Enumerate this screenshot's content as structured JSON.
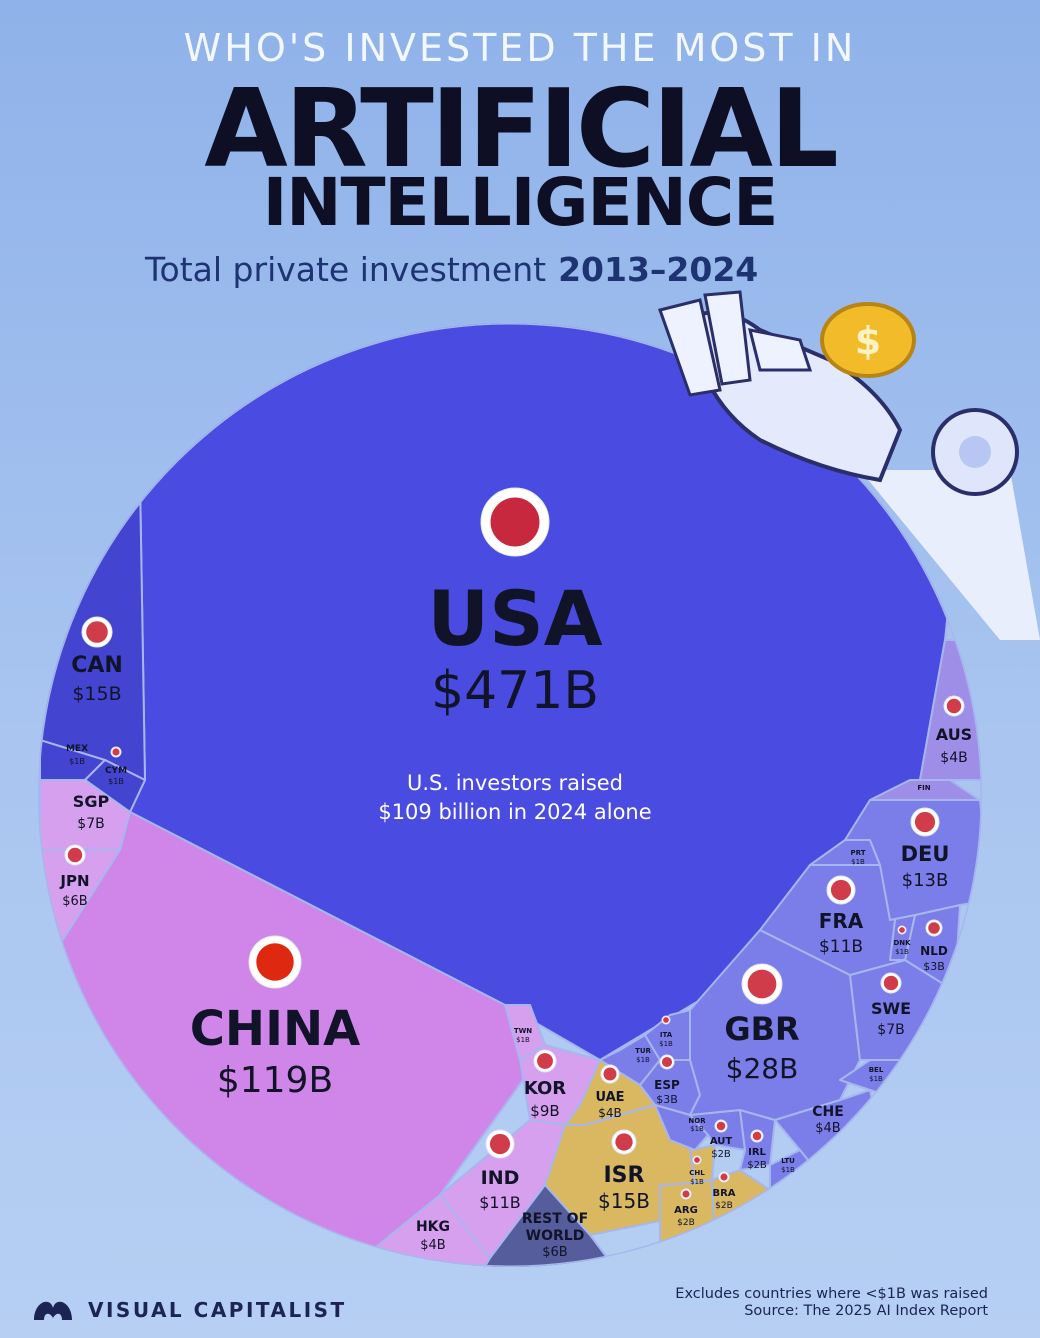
{
  "header": {
    "eyebrow": "WHO'S INVESTED THE MOST IN",
    "title_line1": "ARTIFICIAL",
    "title_line2": "INTELLIGENCE",
    "subtitle": "Total private investment",
    "subtitle_years": "2013–2024"
  },
  "chart_data": {
    "type": "voronoi-treemap",
    "title": "WHO'S INVESTED THE MOST IN ARTIFICIAL INTELLIGENCE",
    "subtitle": "Total private investment 2013–2024",
    "unit": "USD billions",
    "items": [
      {
        "code": "USA",
        "label": "$471B",
        "value": 471,
        "note": "U.S. investors raised $109 billion in 2024 alone"
      },
      {
        "code": "CHINA",
        "label": "$119B",
        "value": 119
      },
      {
        "code": "GBR",
        "label": "$28B",
        "value": 28
      },
      {
        "code": "CAN",
        "label": "$15B",
        "value": 15
      },
      {
        "code": "ISR",
        "label": "$15B",
        "value": 15
      },
      {
        "code": "DEU",
        "label": "$13B",
        "value": 13
      },
      {
        "code": "FRA",
        "label": "$11B",
        "value": 11
      },
      {
        "code": "IND",
        "label": "$11B",
        "value": 11
      },
      {
        "code": "KOR",
        "label": "$9B",
        "value": 9
      },
      {
        "code": "SGP",
        "label": "$7B",
        "value": 7
      },
      {
        "code": "SWE",
        "label": "$7B",
        "value": 7
      },
      {
        "code": "JPN",
        "label": "$6B",
        "value": 6
      },
      {
        "code": "REST OF WORLD",
        "label": "$6B",
        "value": 6
      },
      {
        "code": "AUS",
        "label": "$4B",
        "value": 4
      },
      {
        "code": "HKG",
        "label": "$4B",
        "value": 4
      },
      {
        "code": "UAE",
        "label": "$4B",
        "value": 4
      },
      {
        "code": "CHE",
        "label": "$4B",
        "value": 4
      },
      {
        "code": "NLD",
        "label": "$3B",
        "value": 3
      },
      {
        "code": "ESP",
        "label": "$3B",
        "value": 3
      },
      {
        "code": "AUT",
        "label": "$2B",
        "value": 2
      },
      {
        "code": "IRL",
        "label": "$2B",
        "value": 2
      },
      {
        "code": "ARG",
        "label": "$2B",
        "value": 2
      },
      {
        "code": "BRA",
        "label": "$2B",
        "value": 2
      },
      {
        "code": "MEX",
        "label": "$1B",
        "value": 1
      },
      {
        "code": "CYM",
        "label": "$1B",
        "value": 1
      },
      {
        "code": "TWN",
        "label": "$1B",
        "value": 1
      },
      {
        "code": "TUR",
        "label": "$1B",
        "value": 1
      },
      {
        "code": "ITA",
        "label": "$1B",
        "value": 1
      },
      {
        "code": "NOR",
        "label": "$1B",
        "value": 1
      },
      {
        "code": "CHL",
        "label": "$1B",
        "value": 1
      },
      {
        "code": "LTU",
        "label": "$1B",
        "value": 1
      },
      {
        "code": "BEL",
        "label": "$1B",
        "value": 1
      },
      {
        "code": "DNK",
        "label": "$1B",
        "value": 1
      },
      {
        "code": "PRT",
        "label": "$1B",
        "value": 1
      },
      {
        "code": "FIN",
        "label": "",
        "value": 1
      }
    ]
  },
  "colors": {
    "usa": "#4a4be0",
    "china": "#cf86e8",
    "asia": "#d6a0ee",
    "europe": "#7b7ee9",
    "northamerica": "#4344cf",
    "middleeast": "#d9b861",
    "rest": "#565d9c",
    "oceania": "#9f8ee8"
  },
  "footer": {
    "note": "Excludes countries where <$1B was raised",
    "source": "Source: The 2025 AI Index Report",
    "brand": "VISUAL CAPITALIST"
  }
}
